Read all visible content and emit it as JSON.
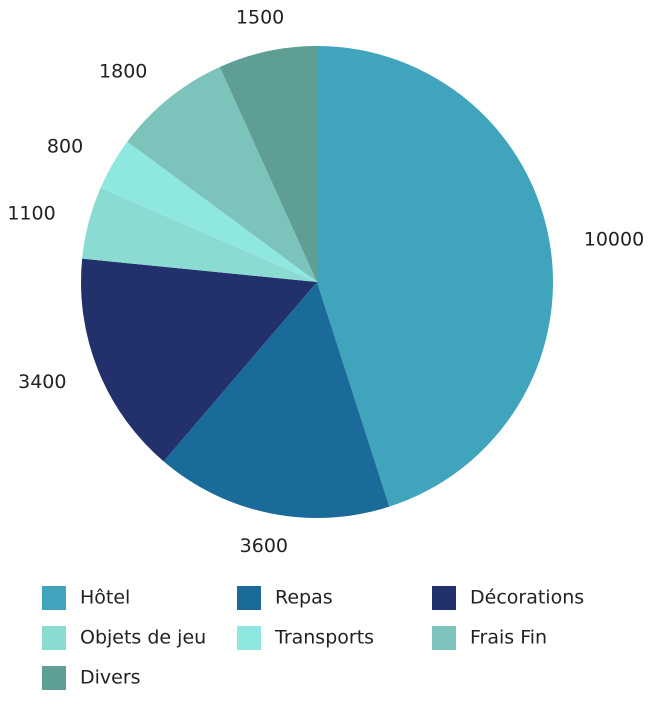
{
  "chart_data": {
    "type": "pie",
    "categories": [
      "Hôtel",
      "Repas",
      "Décorations",
      "Objets de jeu",
      "Transports",
      "Frais Fin",
      "Divers"
    ],
    "values": [
      10000,
      3600,
      3400,
      1100,
      800,
      1800,
      1500
    ],
    "colors": [
      "#40a4bd",
      "#1a6a9a",
      "#22306b",
      "#8adbd2",
      "#8fe8e0",
      "#7cc4bb",
      "#5f9e94"
    ],
    "legend": "bottom"
  }
}
